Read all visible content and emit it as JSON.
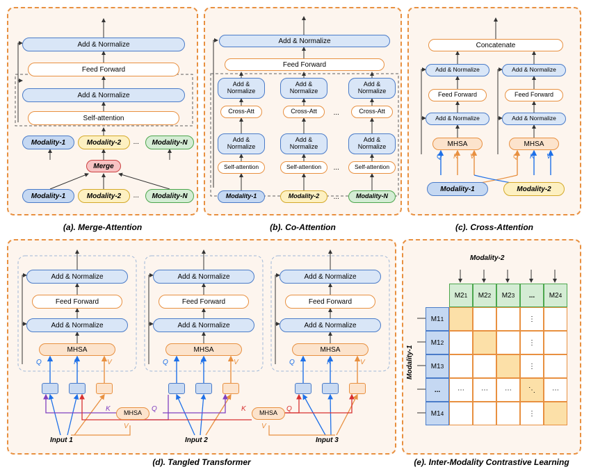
{
  "captions": {
    "a": "(a). Merge-Attention",
    "b": "(b). Co-Attention",
    "c": "(c). Cross-Attention",
    "d": "(d). Tangled Transformer",
    "e": "(e). Inter-Modality Contrastive Learning"
  },
  "labels": {
    "add_norm": "Add & Normalize",
    "feed_fwd": "Feed Forward",
    "self_att": "Self-attention",
    "cross_att": "Cross-Att",
    "concat": "Concatenate",
    "mhsa": "MHSA",
    "merge": "Merge",
    "m1": "Modality-1",
    "m2": "Modality-2",
    "mn": "Modality-N",
    "q": "Q",
    "k": "K",
    "v": "V",
    "dots": "...",
    "in1": "Input 1",
    "in2": "Input 2",
    "in3": "Input 3"
  },
  "matrix": {
    "row_hdr": [
      "M1",
      "M1",
      "M1",
      "...",
      "M1"
    ],
    "row_sub": [
      "1",
      "2",
      "3",
      "",
      "4"
    ],
    "col_hdr": [
      "M2",
      "M2",
      "M2",
      "...",
      "M2"
    ],
    "col_sub": [
      "1",
      "2",
      "3",
      "",
      "4"
    ],
    "mod1": "Modality-1",
    "mod2": "Modality-2"
  },
  "colors": {
    "arrow": "#333333",
    "blue": "#1e70e8",
    "orange": "#e89040",
    "red": "#d83030",
    "purple": "#8040c0",
    "dash": "#606060"
  }
}
